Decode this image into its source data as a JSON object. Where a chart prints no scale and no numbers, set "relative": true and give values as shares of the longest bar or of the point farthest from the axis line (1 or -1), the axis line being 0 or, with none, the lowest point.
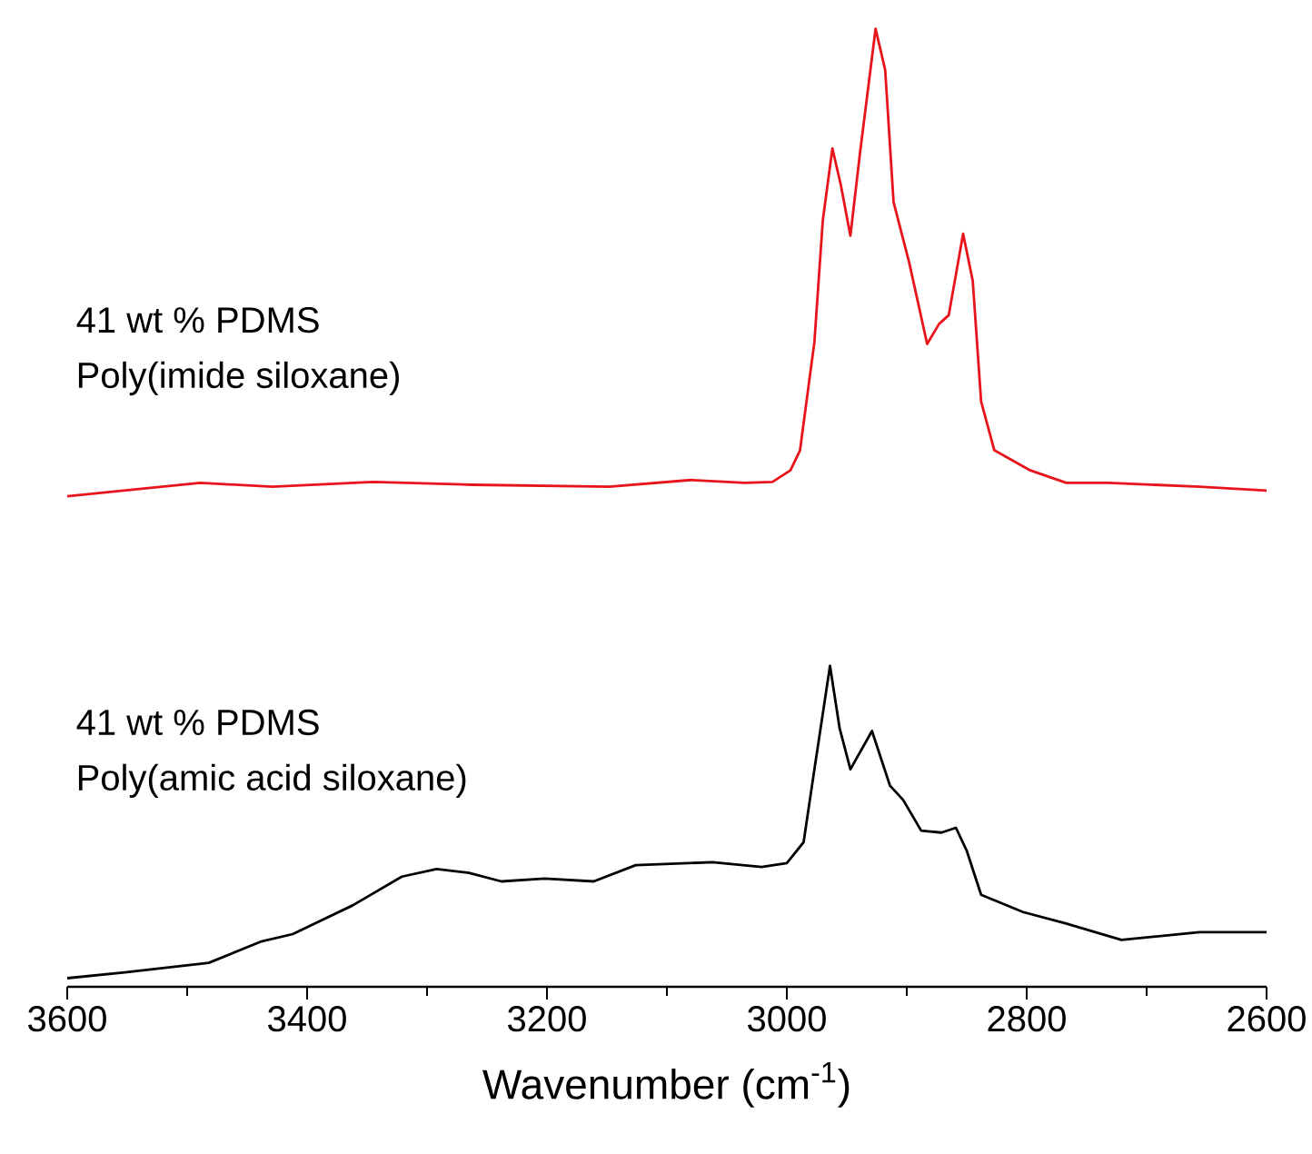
{
  "chart_data": {
    "type": "line",
    "relative": true,
    "xlabel": "Wavenumber (cm$^{-1}$)",
    "xlim": [
      3600,
      2600
    ],
    "xticks": [
      3600,
      3400,
      3200,
      3000,
      2800,
      2600
    ],
    "annotations": [
      "41 wt % PDMS",
      "41 wt % PDMS"
    ],
    "series": [
      {
        "name": "Poly(imide siloxane)",
        "color": "#e8141c",
        "x": [
          3600,
          3489,
          3429,
          3345,
          3262,
          3148,
          3080,
          3035,
          3012,
          2997,
          2989,
          2977,
          2970,
          2962,
          2955,
          2947,
          2939,
          2926,
          2918,
          2911,
          2898,
          2883,
          2873,
          2865,
          2853,
          2845,
          2838,
          2827,
          2797,
          2767,
          2732,
          2656,
          2600
        ],
        "values": [
          0.512,
          0.526,
          0.522,
          0.527,
          0.524,
          0.522,
          0.529,
          0.526,
          0.527,
          0.539,
          0.56,
          0.673,
          0.8,
          0.875,
          0.837,
          0.784,
          0.87,
          1.0,
          0.957,
          0.819,
          0.756,
          0.671,
          0.692,
          0.701,
          0.786,
          0.737,
          0.611,
          0.56,
          0.539,
          0.526,
          0.526,
          0.522,
          0.518
        ]
      },
      {
        "name": "Poly(amic acid siloxane)",
        "color": "#000000",
        "x": [
          3600,
          3552,
          3482,
          3439,
          3412,
          3362,
          3321,
          3292,
          3265,
          3238,
          3202,
          3161,
          3126,
          3062,
          3021,
          3000,
          2986,
          2977,
          2964,
          2956,
          2947,
          2929,
          2914,
          2903,
          2888,
          2871,
          2859,
          2850,
          2838,
          2803,
          2767,
          2721,
          2656,
          2600
        ],
        "values": [
          0.009,
          0.015,
          0.025,
          0.047,
          0.055,
          0.085,
          0.115,
          0.123,
          0.119,
          0.11,
          0.113,
          0.11,
          0.127,
          0.13,
          0.125,
          0.129,
          0.151,
          0.227,
          0.335,
          0.27,
          0.227,
          0.267,
          0.21,
          0.195,
          0.163,
          0.161,
          0.166,
          0.142,
          0.096,
          0.078,
          0.066,
          0.049,
          0.057,
          0.057
        ]
      }
    ]
  }
}
